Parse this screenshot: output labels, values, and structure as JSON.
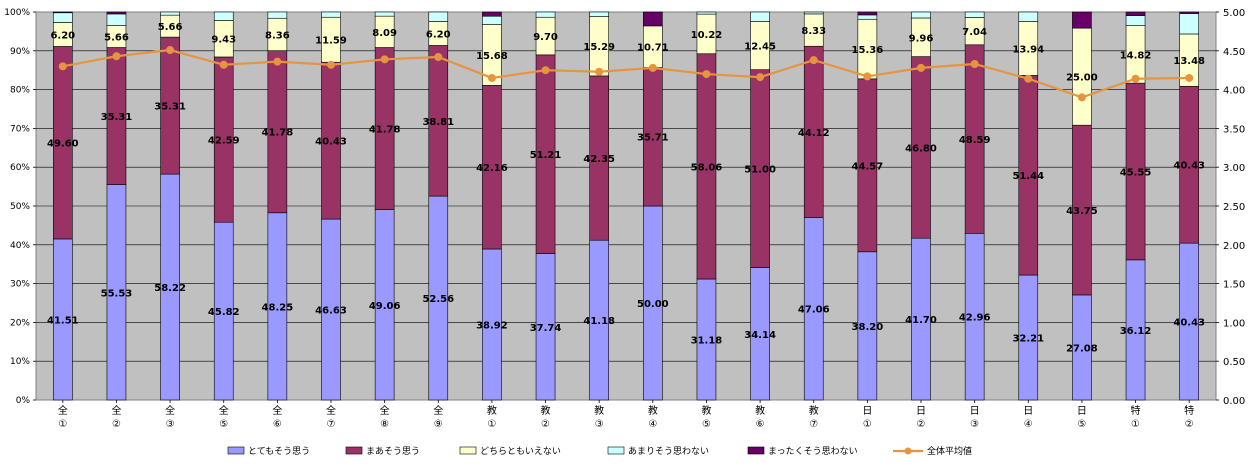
{
  "chart_data": {
    "type": "bar",
    "stacked": true,
    "percent_axis": {
      "ylim": [
        0,
        100
      ],
      "ticks": [
        "0%",
        "10%",
        "20%",
        "30%",
        "40%",
        "50%",
        "60%",
        "70%",
        "80%",
        "90%",
        "100%"
      ]
    },
    "secondary_axis": {
      "ylim": [
        0,
        5
      ],
      "ticks": [
        "0.00",
        "0.50",
        "1.00",
        "1.50",
        "2.00",
        "2.50",
        "3.00",
        "3.50",
        "4.00",
        "4.50",
        "5.00"
      ]
    },
    "grid": true,
    "legend": "bottom",
    "categories": [
      [
        "全",
        "①"
      ],
      [
        "全",
        "②"
      ],
      [
        "全",
        "③"
      ],
      [
        "全",
        "⑤"
      ],
      [
        "全",
        "⑥"
      ],
      [
        "全",
        "⑦"
      ],
      [
        "全",
        "⑧"
      ],
      [
        "全",
        "⑨"
      ],
      [
        "教",
        "①"
      ],
      [
        "教",
        "②"
      ],
      [
        "教",
        "③"
      ],
      [
        "教",
        "④"
      ],
      [
        "教",
        "⑤"
      ],
      [
        "教",
        "⑥"
      ],
      [
        "教",
        "⑦"
      ],
      [
        "日",
        "①"
      ],
      [
        "日",
        "②"
      ],
      [
        "日",
        "③"
      ],
      [
        "日",
        "④"
      ],
      [
        "日",
        "⑤"
      ],
      [
        "特",
        "①"
      ],
      [
        "特",
        "②"
      ]
    ],
    "series": [
      {
        "name": "とてもそう思う",
        "color": "#9999ff",
        "values": [
          41.51,
          55.53,
          58.22,
          45.82,
          48.25,
          46.63,
          49.06,
          52.56,
          38.92,
          37.74,
          41.18,
          50.0,
          31.18,
          34.14,
          47.06,
          38.2,
          41.7,
          42.96,
          32.21,
          27.08,
          36.12,
          40.43
        ],
        "labels": [
          "41.51",
          "55.53",
          "58.22",
          "45.82",
          "48.25",
          "46.63",
          "49.06",
          "52.56",
          "38.92",
          "37.74",
          "41.18",
          "50.00",
          "31.18",
          "34.14",
          "47.06",
          "38.20",
          "41.70",
          "42.96",
          "32.21",
          "27.08",
          "36.12",
          "40.43"
        ]
      },
      {
        "name": "まあそう思う",
        "color": "#993366",
        "values": [
          49.6,
          35.31,
          35.31,
          42.59,
          41.78,
          40.43,
          41.78,
          38.81,
          42.16,
          51.21,
          42.35,
          35.71,
          58.06,
          51.0,
          44.12,
          44.57,
          46.8,
          48.59,
          51.44,
          43.75,
          45.55,
          40.43
        ],
        "labels": [
          "49.60",
          "35.31",
          "35.31",
          "42.59",
          "41.78",
          "40.43",
          "41.78",
          "38.81",
          "42.16",
          "51.21",
          "42.35",
          "35.71",
          "58.06",
          "51.00",
          "44.12",
          "44.57",
          "46.80",
          "48.59",
          "51.44",
          "43.75",
          "45.55",
          "40.43"
        ]
      },
      {
        "name": "どちらともいえない",
        "color": "#ffffcc",
        "values": [
          6.2,
          5.66,
          5.66,
          9.43,
          8.36,
          11.59,
          8.09,
          6.2,
          15.68,
          9.7,
          15.29,
          10.71,
          10.22,
          12.45,
          8.33,
          15.36,
          9.96,
          7.04,
          13.94,
          25.0,
          14.82,
          13.48
        ],
        "labels": [
          "6.20",
          "5.66",
          "5.66",
          "9.43",
          "8.36",
          "11.59",
          "8.09",
          "6.20",
          "15.68",
          "9.70",
          "15.29",
          "10.71",
          "10.22",
          "12.45",
          "8.33",
          "15.36",
          "9.96",
          "7.04",
          "13.94",
          "25.00",
          "14.82",
          "13.48"
        ]
      },
      {
        "name": "あまりそう思わない",
        "color": "#ccffff",
        "values": [
          2.49,
          3.0,
          0.81,
          2.16,
          1.61,
          1.35,
          1.07,
          2.43,
          2.15,
          1.35,
          1.18,
          0.0,
          0.54,
          2.41,
          0.49,
          1.12,
          1.54,
          1.41,
          2.41,
          0.0,
          2.56,
          5.27
        ]
      },
      {
        "name": "まったくそう思わない",
        "color": "#660066",
        "values": [
          0.2,
          0.5,
          0.0,
          0.0,
          0.0,
          0.0,
          0.0,
          0.0,
          1.09,
          0.0,
          0.0,
          3.58,
          0.0,
          0.0,
          0.0,
          0.75,
          0.0,
          0.0,
          0.0,
          4.17,
          0.95,
          0.39
        ]
      }
    ],
    "line": {
      "name": "全体平均値",
      "color": "#e69440",
      "values": [
        4.3,
        4.43,
        4.51,
        4.32,
        4.36,
        4.32,
        4.39,
        4.42,
        4.15,
        4.25,
        4.23,
        4.28,
        4.2,
        4.16,
        4.38,
        4.17,
        4.28,
        4.33,
        4.14,
        3.9,
        4.14,
        4.15
      ]
    }
  }
}
